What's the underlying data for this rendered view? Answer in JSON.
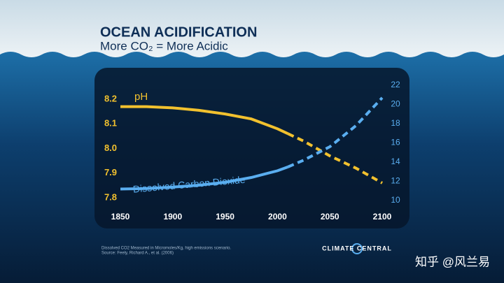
{
  "chart_data": {
    "type": "line",
    "title": "OCEAN ACIDIFICATION",
    "subtitle": "More CO₂ = More Acidic",
    "x": [
      1850,
      1875,
      1900,
      1925,
      1950,
      1975,
      2000,
      2010,
      2025,
      2050,
      2075,
      2100
    ],
    "xlim": [
      1850,
      2100
    ],
    "xticks": [
      1850,
      1900,
      1950,
      2000,
      2050,
      2100
    ],
    "ylim": [
      7.8,
      8.2
    ],
    "yticks": [
      7.8,
      7.9,
      {
        "value": 8,
        "label": "8.0"
      },
      8.1,
      8.2
    ],
    "y2lim": [
      10,
      22
    ],
    "y2ticks": [
      10,
      12,
      14,
      16,
      18,
      20,
      22
    ],
    "dashed_from": 2010,
    "series": [
      {
        "name": "pH",
        "color": "#f2c12e",
        "values": [
          8.17,
          8.17,
          8.165,
          8.155,
          8.14,
          8.12,
          8.08,
          8.06,
          8.03,
          7.97,
          7.92,
          7.86
        ]
      },
      {
        "name": "Dissolved Carbon Dioxide",
        "color": "#5aaef0",
        "axis": "y2",
        "values": [
          11.2,
          11.25,
          11.4,
          11.6,
          11.9,
          12.4,
          13.1,
          13.5,
          14.2,
          15.6,
          17.8,
          20.7
        ]
      }
    ],
    "footnote": [
      "Dissolved CO2 Measured in Micromoles/Kg, high emissions scenario.",
      "Source: Feely, Richard A., et al. (2006)"
    ],
    "logo": "CLIMATE CENTRAL",
    "watermark": "知乎 @风兰易"
  }
}
